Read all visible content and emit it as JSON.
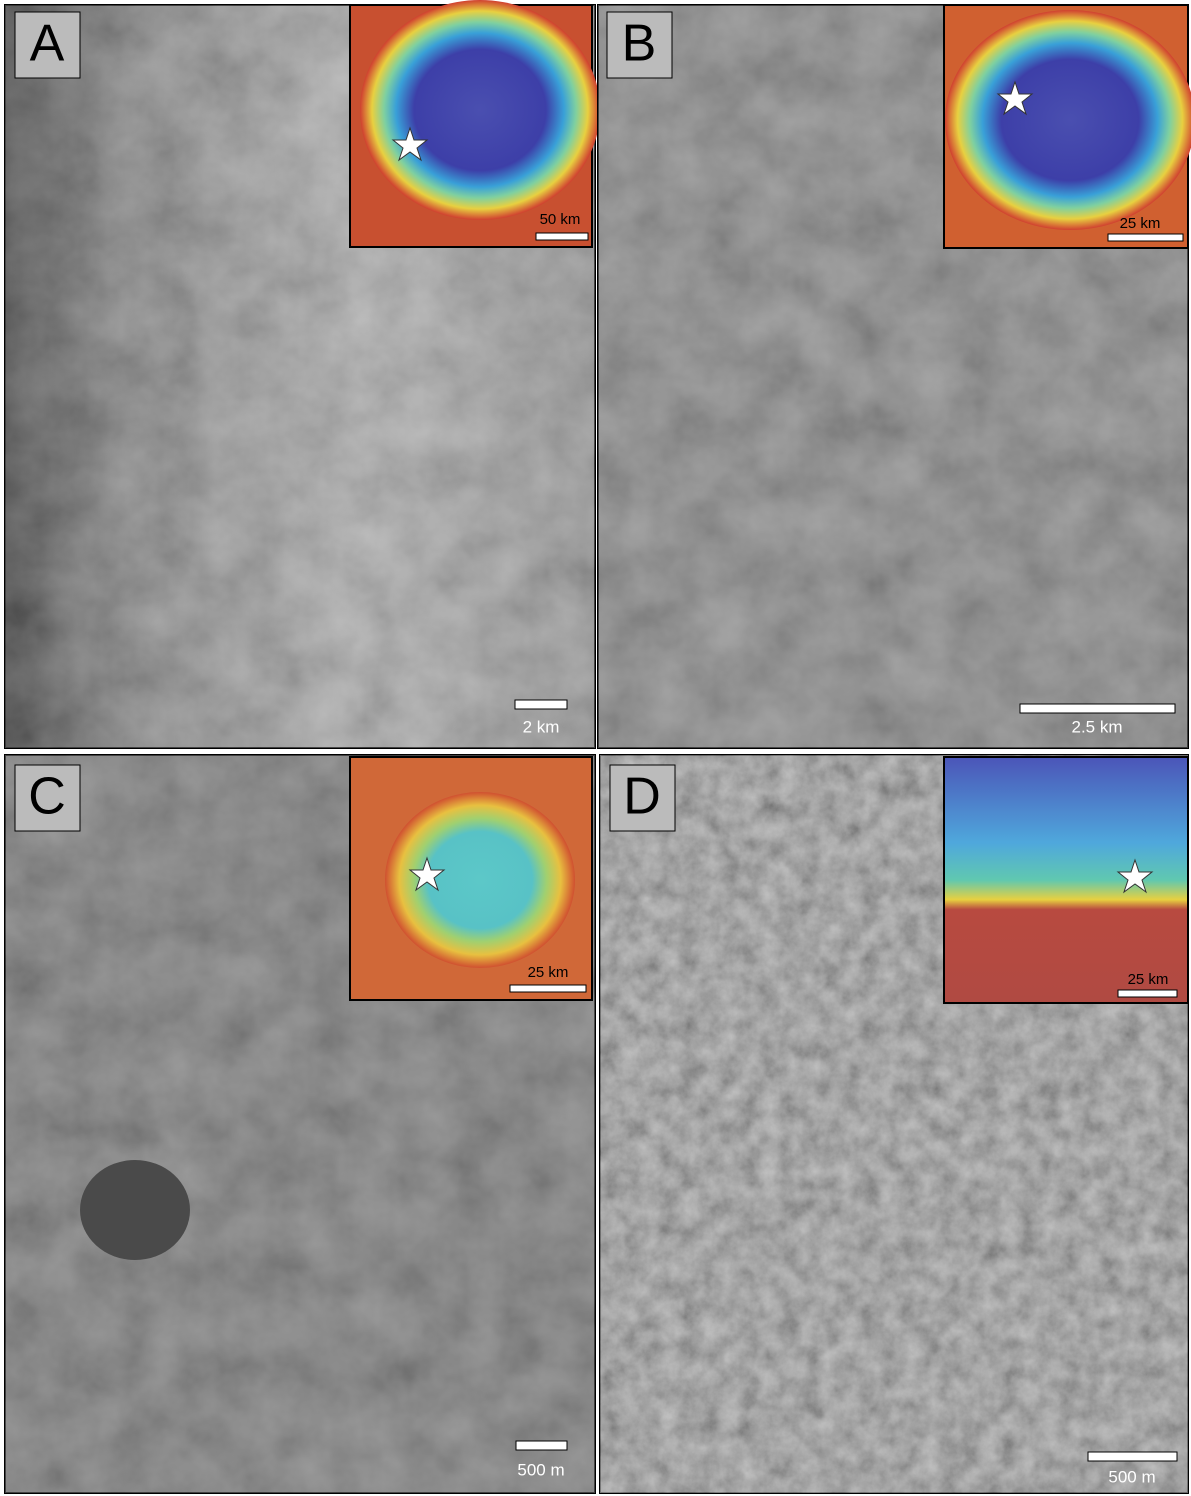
{
  "panels": [
    {
      "label": "A",
      "scale": "2 km",
      "inset_scale": "50 km"
    },
    {
      "label": "B",
      "scale": "2.5 km",
      "inset_scale": "25 km"
    },
    {
      "label": "C",
      "scale": "500 m",
      "inset_scale": "25 km"
    },
    {
      "label": "D",
      "scale": "500 m",
      "inset_scale": "25 km"
    }
  ]
}
